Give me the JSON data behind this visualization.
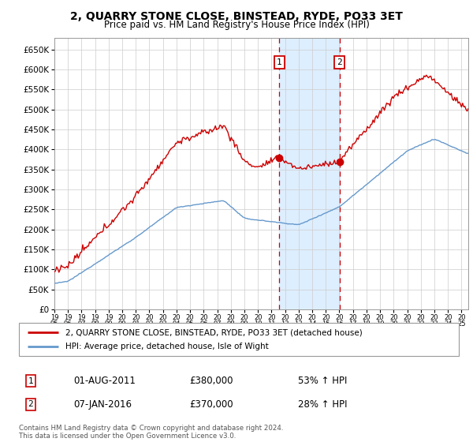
{
  "title": "2, QUARRY STONE CLOSE, BINSTEAD, RYDE, PO33 3ET",
  "subtitle": "Price paid vs. HM Land Registry's House Price Index (HPI)",
  "legend_line1": "2, QUARRY STONE CLOSE, BINSTEAD, RYDE, PO33 3ET (detached house)",
  "legend_line2": "HPI: Average price, detached house, Isle of Wight",
  "annotation1": {
    "label": "1",
    "date": "01-AUG-2011",
    "price": "£380,000",
    "pct": "53% ↑ HPI"
  },
  "annotation2": {
    "label": "2",
    "date": "07-JAN-2016",
    "price": "£370,000",
    "pct": "28% ↑ HPI"
  },
  "footnote": "Contains HM Land Registry data © Crown copyright and database right 2024.\nThis data is licensed under the Open Government Licence v3.0.",
  "ylim": [
    0,
    680000
  ],
  "ytick_labels": [
    "£0",
    "£50K",
    "£100K",
    "£150K",
    "£200K",
    "£250K",
    "£300K",
    "£350K",
    "£400K",
    "£450K",
    "£500K",
    "£550K",
    "£600K",
    "£650K"
  ],
  "ytick_vals": [
    0,
    50000,
    100000,
    150000,
    200000,
    250000,
    300000,
    350000,
    400000,
    450000,
    500000,
    550000,
    600000,
    650000
  ],
  "xlim_start": 1995.0,
  "xlim_end": 2025.5,
  "sale1_x": 2011.583,
  "sale2_x": 2016.017,
  "sale1_y": 380000,
  "sale2_y": 370000,
  "red_color": "#cc0000",
  "blue_color": "#6699cc",
  "shade_color": "#ddeeff",
  "background_color": "#ffffff",
  "grid_color": "#cccccc"
}
